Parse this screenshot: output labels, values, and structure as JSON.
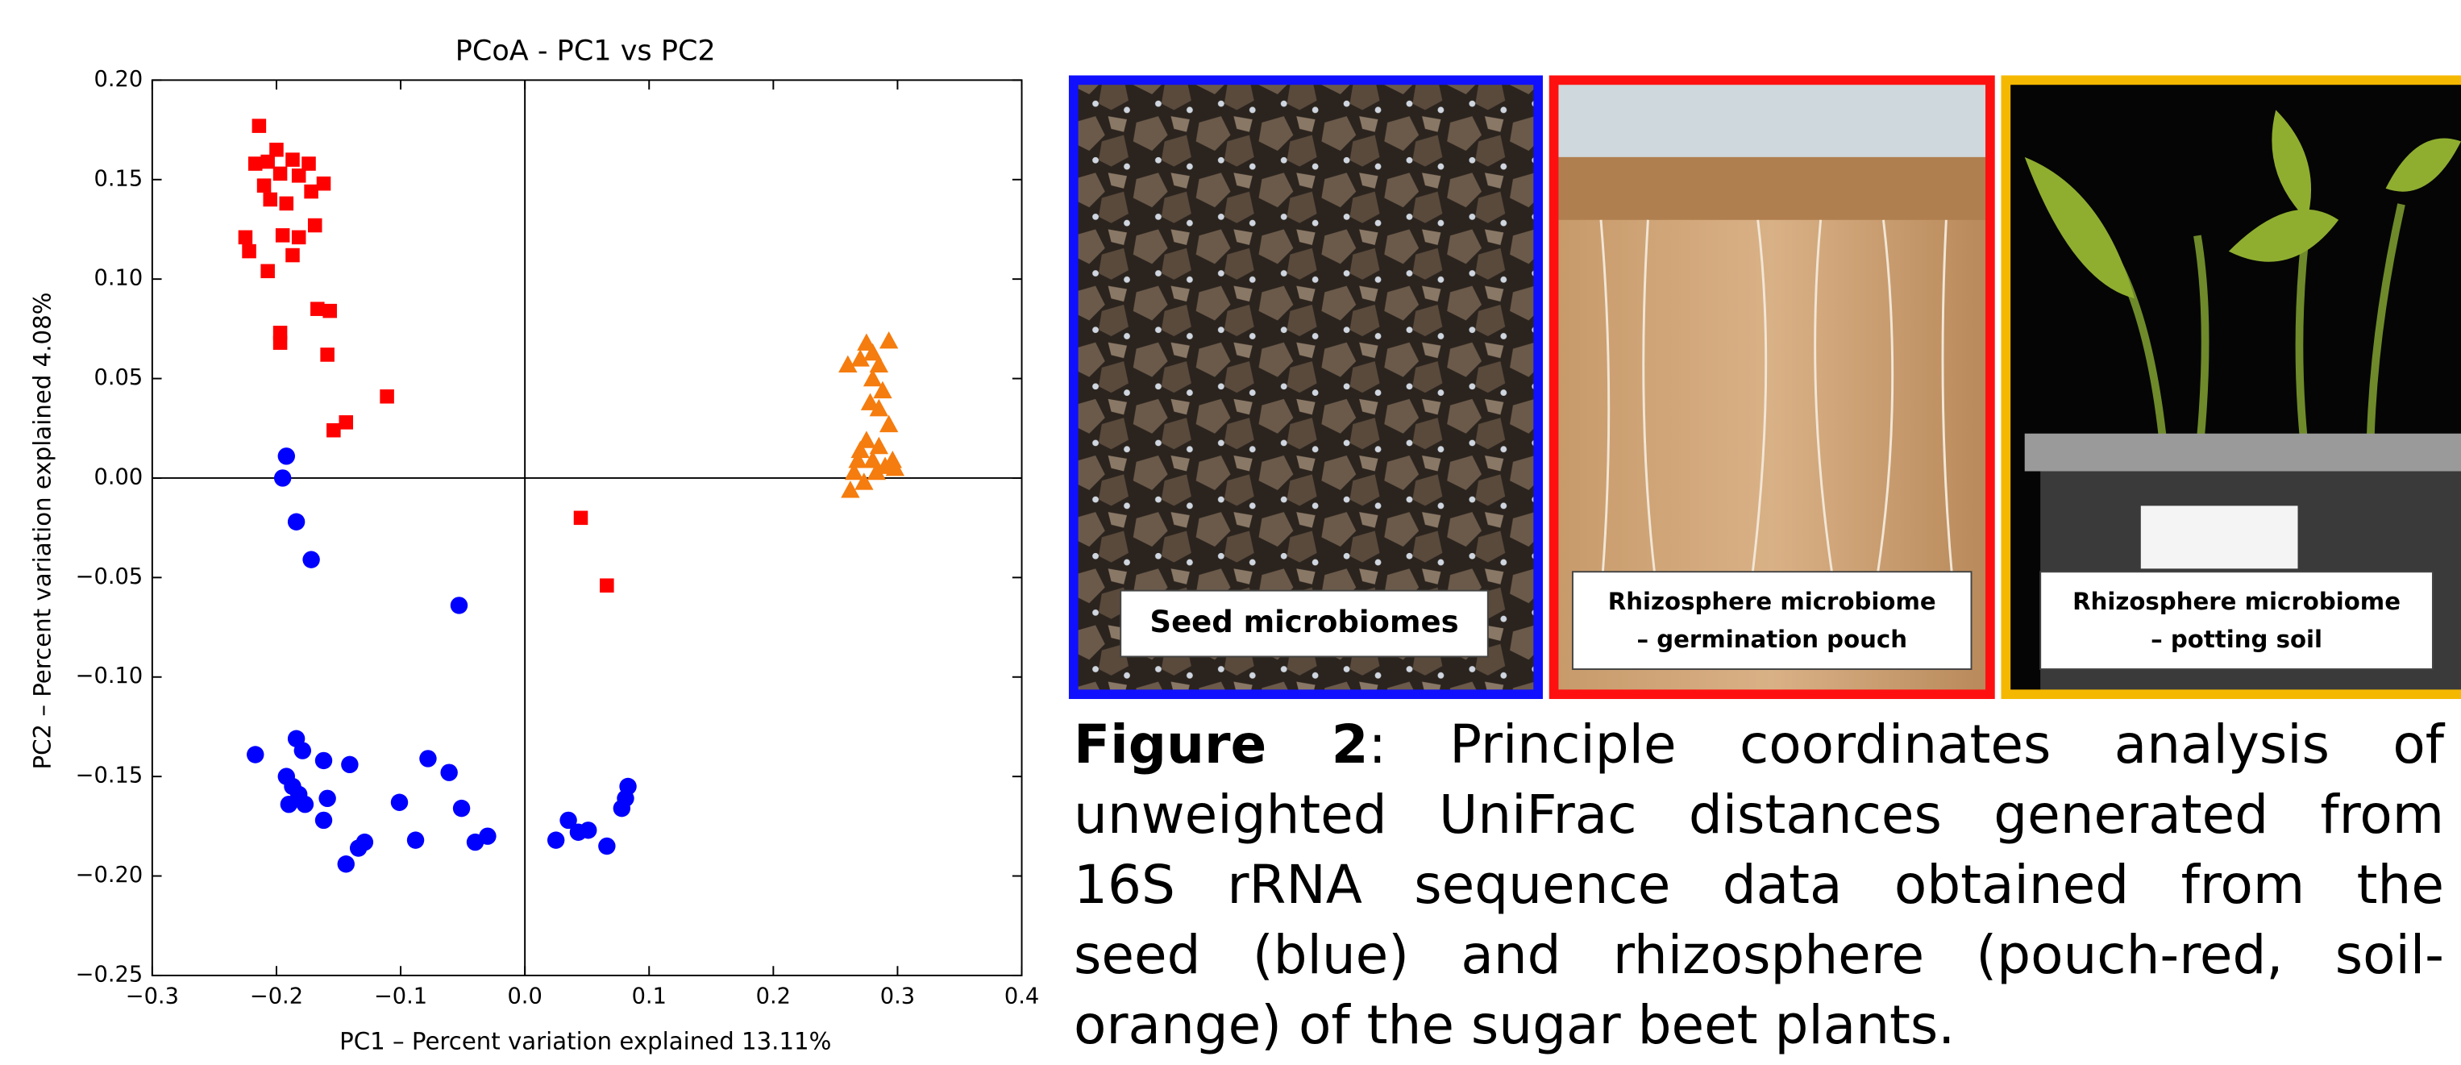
{
  "chart_data": {
    "type": "scatter",
    "title": "PCoA - PC1 vs PC2",
    "x_label": "PC1 – Percent variation explained 13.11%",
    "y_label": "PC2 – Percent variation explained 4.08%",
    "xlim": [
      -0.3,
      0.4
    ],
    "ylim": [
      -0.25,
      0.2
    ],
    "xticks": [
      {
        "value": -0.3,
        "label": "−0.3"
      },
      {
        "value": -0.2,
        "label": "−0.2"
      },
      {
        "value": -0.1,
        "label": "−0.1"
      },
      {
        "value": 0,
        "label": "0.0"
      },
      0.1,
      0.2,
      0.3,
      0.4
    ],
    "yticks": [
      {
        "value": -0.25,
        "label": "−0.25"
      },
      {
        "value": -0.2,
        "label": "−0.20"
      },
      {
        "value": -0.15,
        "label": "−0.15"
      },
      {
        "value": -0.1,
        "label": "−0.10"
      },
      {
        "value": -0.05,
        "label": "−0.05"
      },
      {
        "value": 0,
        "label": "0.00"
      },
      0.05,
      {
        "value": 0.1,
        "label": "0.10"
      },
      0.15,
      {
        "value": 0.2,
        "label": "0.20"
      }
    ],
    "grid": false,
    "series": [
      {
        "color": "#ff0000",
        "marker": "square",
        "x": [
          -0.214,
          -0.217,
          -0.207,
          -0.2,
          -0.187,
          -0.174,
          -0.162,
          -0.197,
          -0.182,
          -0.21,
          -0.205,
          -0.192,
          -0.172,
          -0.169,
          -0.225,
          -0.222,
          -0.195,
          -0.182,
          -0.187,
          -0.207,
          -0.167,
          -0.157,
          -0.197,
          -0.197,
          -0.159,
          -0.144,
          -0.154,
          -0.111,
          0.045,
          0.066
        ],
        "values": [
          0.177,
          0.158,
          0.159,
          0.165,
          0.16,
          0.158,
          0.148,
          0.153,
          0.152,
          0.147,
          0.14,
          0.138,
          0.144,
          0.127,
          0.121,
          0.114,
          0.122,
          0.121,
          0.112,
          0.104,
          0.085,
          0.084,
          0.073,
          0.068,
          0.062,
          0.028,
          0.024,
          0.041,
          -0.02,
          -0.054
        ]
      },
      {
        "color": "#0000ff",
        "marker": "circle",
        "x": [
          -0.192,
          -0.195,
          -0.184,
          -0.172,
          -0.053,
          -0.217,
          -0.184,
          -0.179,
          -0.192,
          -0.187,
          -0.182,
          -0.177,
          -0.19,
          -0.162,
          -0.141,
          -0.159,
          -0.162,
          -0.134,
          -0.129,
          -0.144,
          -0.101,
          -0.088,
          -0.078,
          -0.061,
          -0.051,
          -0.04,
          -0.03,
          0.025,
          0.035,
          0.043,
          0.051,
          0.066,
          0.078,
          0.083,
          0.081
        ],
        "values": [
          0.011,
          0,
          -0.022,
          -0.041,
          -0.064,
          -0.139,
          -0.131,
          -0.137,
          -0.15,
          -0.155,
          -0.159,
          -0.164,
          -0.164,
          -0.142,
          -0.144,
          -0.161,
          -0.172,
          -0.186,
          -0.183,
          -0.194,
          -0.163,
          -0.182,
          -0.141,
          -0.148,
          -0.166,
          -0.183,
          -0.18,
          -0.182,
          -0.172,
          -0.178,
          -0.177,
          -0.185,
          -0.166,
          -0.155,
          -0.161
        ]
      },
      {
        "color": "#f57c0e",
        "marker": "triangle",
        "x": [
          0.26,
          0.28,
          0.293,
          0.275,
          0.285,
          0.28,
          0.288,
          0.278,
          0.293,
          0.27,
          0.28,
          0.29,
          0.265,
          0.273,
          0.262,
          0.296,
          0.275,
          0.285,
          0.268,
          0.283,
          0.298,
          0.27,
          0.285
        ],
        "values": [
          0.057,
          0.063,
          0.069,
          0.068,
          0.057,
          0.05,
          0.044,
          0.038,
          0.027,
          0.014,
          0.009,
          0.006,
          0.003,
          -0.002,
          -0.006,
          0.009,
          0.019,
          0.016,
          0.009,
          0.003,
          0.005,
          0.06,
          0.035
        ]
      }
    ]
  },
  "panels": [
    {
      "label_lines": [
        "Seed microbiomes"
      ]
    },
    {
      "label_lines": [
        "Rhizosphere microbiome",
        "– germination pouch"
      ]
    },
    {
      "label_lines": [
        "Rhizosphere microbiome",
        "– potting soil"
      ]
    }
  ],
  "caption": {
    "label": "Figure 2",
    "lines": [
      ": Principle coordinates analysis of",
      "unweighted UniFrac distances generated from",
      "16S rRNA sequence data obtained from the",
      "seed (blue) and rhizosphere (pouch-red, soil-",
      "orange) of the sugar beet plants."
    ]
  }
}
